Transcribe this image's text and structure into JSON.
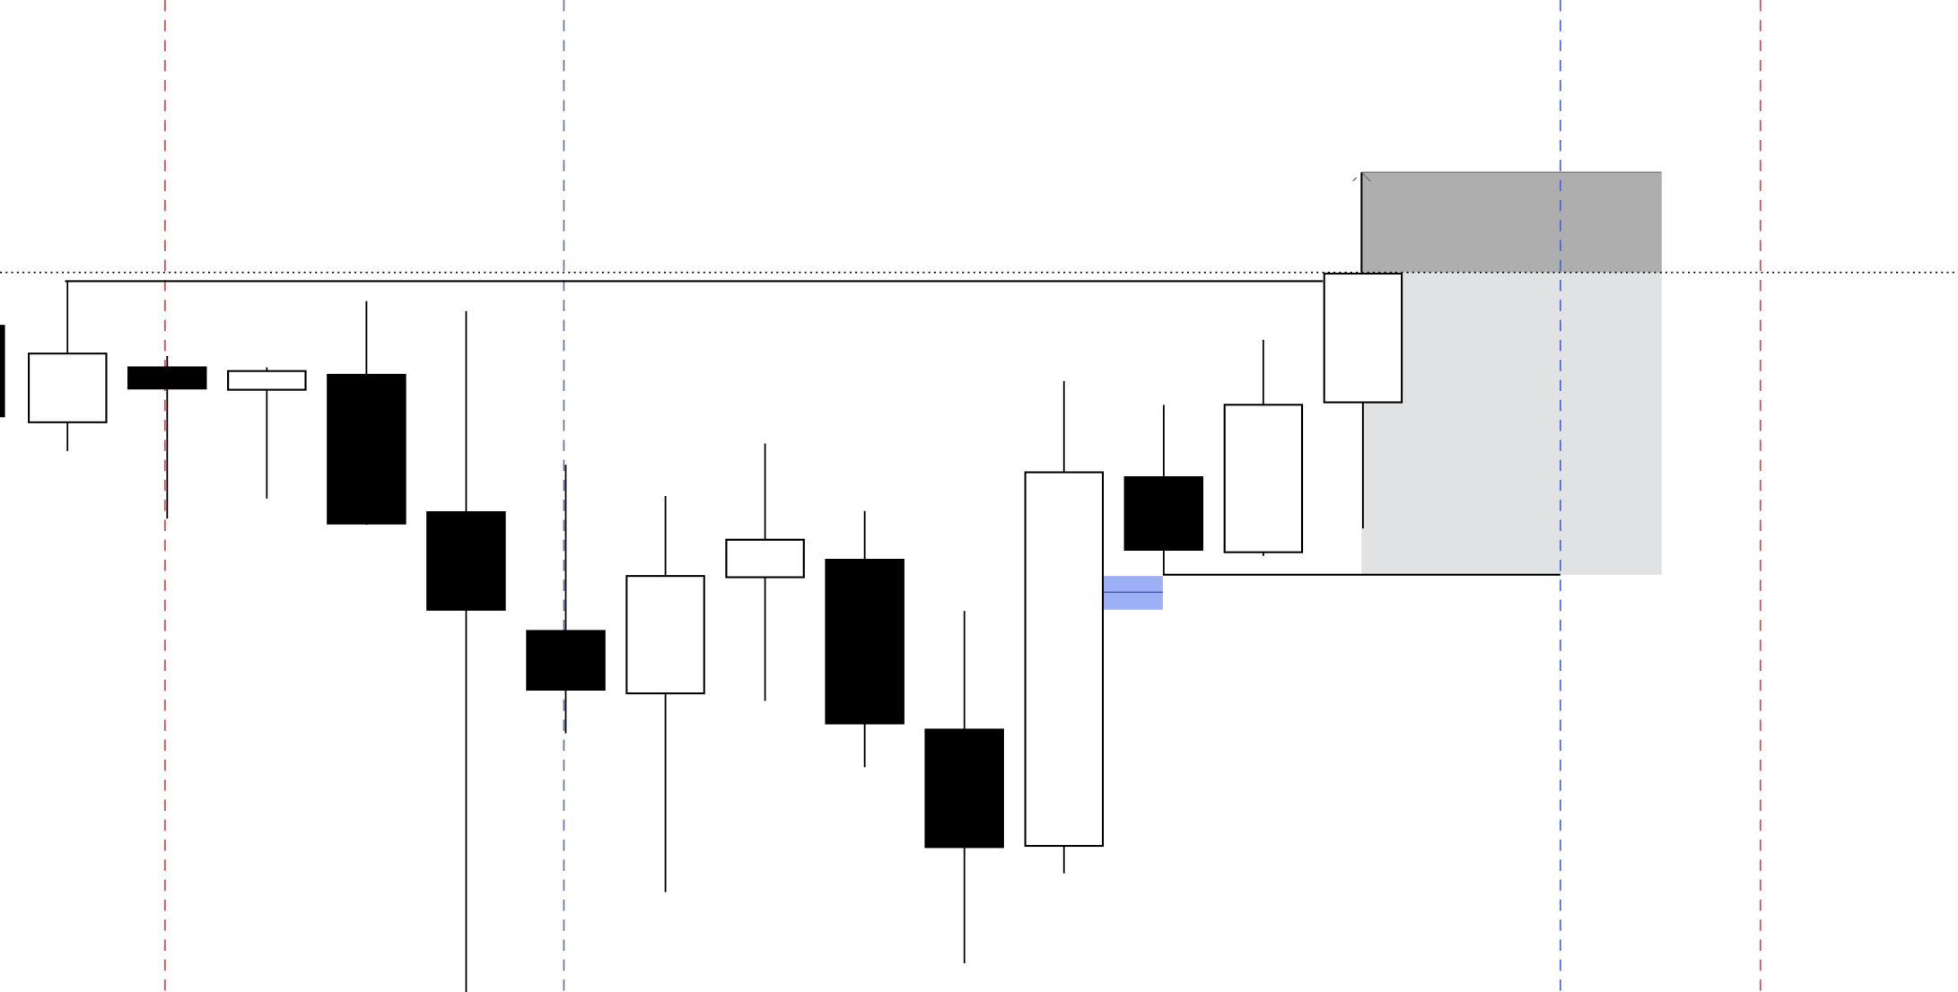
{
  "chart_data": {
    "type": "candlestick",
    "title": "",
    "xlabel": "",
    "ylabel": "",
    "grid": false,
    "colors": {
      "bull_body": "#ffffff",
      "bear_body": "#000000",
      "outline": "#000000",
      "session_line_red": "#e8434b",
      "session_line_blue": "#3f63e0",
      "zone_upper": "#aeaeae",
      "zone_lower": "#e1e2e4",
      "fvg_highlight": "#9db0f5"
    },
    "candles": [
      {
        "open": 466,
        "close": 540,
        "high": 540,
        "low": 466,
        "partial": true
      },
      {
        "open": 462,
        "close": 517,
        "high": 575,
        "low": 439
      },
      {
        "open": 506,
        "close": 489,
        "high": 515,
        "low": 385
      },
      {
        "open": 488,
        "close": 503,
        "high": 506,
        "low": 401
      },
      {
        "open": 500,
        "close": 381,
        "high": 559,
        "low": 380
      },
      {
        "open": 390,
        "close": 312,
        "high": 551,
        "low": 5
      },
      {
        "open": 295,
        "close": 248,
        "high": 428,
        "low": 213
      },
      {
        "open": 245,
        "close": 339,
        "high": 403,
        "low": 86
      },
      {
        "open": 338,
        "close": 368,
        "high": 445,
        "low": 239
      },
      {
        "open": 352,
        "close": 221,
        "high": 391,
        "low": 186
      },
      {
        "open": 216,
        "close": 122,
        "high": 311,
        "low": 29
      },
      {
        "open": 123,
        "close": 422,
        "high": 495,
        "low": 101
      },
      {
        "open": 418,
        "close": 360,
        "high": 476,
        "low": 340
      },
      {
        "open": 358,
        "close": 476,
        "high": 528,
        "low": 355
      },
      {
        "open": 478,
        "close": 581,
        "high": 581,
        "low": 377
      }
    ],
    "levels": {
      "dotted_level": 582,
      "swing_high_line": 575,
      "swing_low_line": 340
    },
    "zones": {
      "upper_zone": {
        "top": 662,
        "bottom": 582
      },
      "lower_zone": {
        "top": 582,
        "bottom": 340
      },
      "fvg": {
        "top": 339,
        "bottom": 312,
        "mid": 326
      }
    }
  }
}
